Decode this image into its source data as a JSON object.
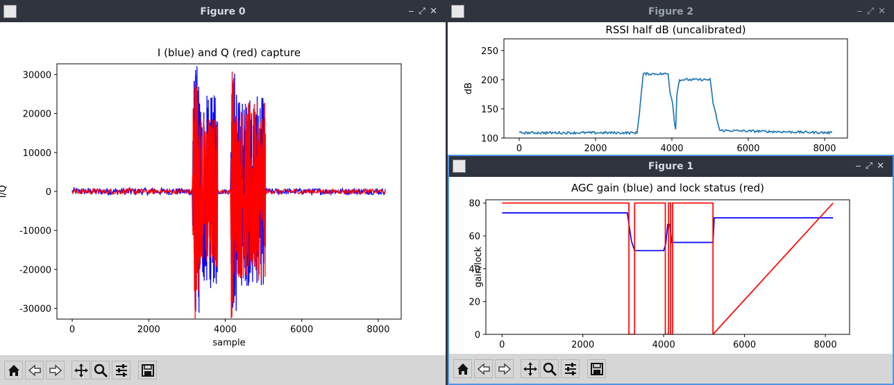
{
  "colors": {
    "titlebar": "#2f343f",
    "blue": "#0000ff",
    "red": "#ff0000",
    "rssi": "#1f77b4",
    "toolbar": "#d6d6d6"
  },
  "windows": [
    {
      "title": "Figure 0",
      "controls": [
        "minimize-icon",
        "maximize-icon",
        "close-icon"
      ]
    },
    {
      "title": "Figure 2",
      "controls": [
        "minimize-icon",
        "maximize-icon",
        "close-icon"
      ]
    },
    {
      "title": "Figure 1",
      "controls": [
        "minimize-icon",
        "maximize-icon",
        "close-icon"
      ]
    }
  ],
  "toolbar_icons": [
    "home-icon",
    "back-icon",
    "forward-icon",
    "pan-icon",
    "zoom-icon",
    "configure-icon",
    "save-icon"
  ],
  "chart_data": [
    {
      "type": "line",
      "title": "I (blue) and Q (red) capture",
      "xlabel": "sample",
      "ylabel": "I/Q",
      "xlim": [
        -400,
        8600
      ],
      "ylim": [
        -32768,
        32767
      ],
      "x_ticks": [
        0,
        2000,
        4000,
        6000,
        8000
      ],
      "y_ticks": [
        -30000,
        -20000,
        -10000,
        0,
        10000,
        20000,
        30000
      ],
      "series": [
        {
          "color": "#0000ff",
          "segments": [
            {
              "x": [
                0,
                3150
              ],
              "amplitude": 900
            },
            {
              "x": [
                3150,
                3330
              ],
              "amplitude": 32767
            },
            {
              "x": [
                3330,
                3800
              ],
              "amplitude": 25000
            },
            {
              "x": [
                3800,
                4150
              ],
              "amplitude": 700
            },
            {
              "x": [
                4150,
                4300
              ],
              "amplitude": 32767
            },
            {
              "x": [
                4300,
                5050
              ],
              "amplitude": 24500
            },
            {
              "x": [
                5050,
                8192
              ],
              "amplitude": 800
            }
          ]
        },
        {
          "color": "#ff0000",
          "segments": [
            {
              "x": [
                0,
                3150
              ],
              "amplitude": 700
            },
            {
              "x": [
                3150,
                3300
              ],
              "amplitude": 32767
            },
            {
              "x": [
                3300,
                3800
              ],
              "amplitude": 20000
            },
            {
              "x": [
                3800,
                4150
              ],
              "amplitude": 500
            },
            {
              "x": [
                4150,
                4250
              ],
              "amplitude": 32767
            },
            {
              "x": [
                4250,
                5050
              ],
              "amplitude": 23000
            },
            {
              "x": [
                5050,
                8192
              ],
              "amplitude": 600
            }
          ]
        }
      ]
    },
    {
      "type": "line",
      "title": "RSSI half dB (uncalibrated)",
      "xlabel": "",
      "ylabel": "dB",
      "xlim": [
        -400,
        8600
      ],
      "ylim": [
        100,
        270
      ],
      "x_ticks": [
        0,
        2000,
        4000,
        6000,
        8000
      ],
      "y_ticks": [
        100,
        150,
        200,
        250
      ],
      "series": [
        {
          "color": "#1f77b4",
          "x": [
            0,
            3090,
            3150,
            3250,
            3900,
            3950,
            4020,
            4070,
            4100,
            4130,
            4200,
            5000,
            5080,
            5250,
            8192
          ],
          "y": [
            109,
            109,
            145,
            210,
            210,
            180,
            160,
            125,
            115,
            175,
            200,
            200,
            160,
            113,
            109
          ]
        }
      ]
    },
    {
      "type": "line",
      "title": "AGC gain (blue) and lock status (red)",
      "xlabel": "",
      "ylabel": "gain/lock",
      "xlim": [
        -400,
        8600
      ],
      "ylim": [
        0,
        82
      ],
      "x_ticks": [
        0,
        2000,
        4000,
        6000,
        8000
      ],
      "y_ticks": [
        0,
        20,
        40,
        60,
        80
      ],
      "series": [
        {
          "color": "#0000ff",
          "x": [
            0,
            3100,
            3200,
            3280,
            3400,
            4000,
            4050,
            4100,
            4150,
            4200,
            4230,
            5220,
            5250,
            8192
          ],
          "y": [
            74,
            74,
            57,
            51,
            51,
            51,
            55,
            67,
            67,
            56,
            56,
            56,
            71,
            71
          ]
        },
        {
          "color": "#ff0000",
          "x": [
            0,
            3140,
            3140,
            3280,
            3280,
            4040,
            4040,
            4120,
            4120,
            4170,
            4170,
            4220,
            4220,
            5220,
            5220,
            8192
          ],
          "y": [
            80,
            80,
            0,
            0,
            80,
            80,
            0,
            0,
            80,
            80,
            0,
            0,
            80,
            80,
            0,
            80
          ]
        }
      ]
    }
  ]
}
